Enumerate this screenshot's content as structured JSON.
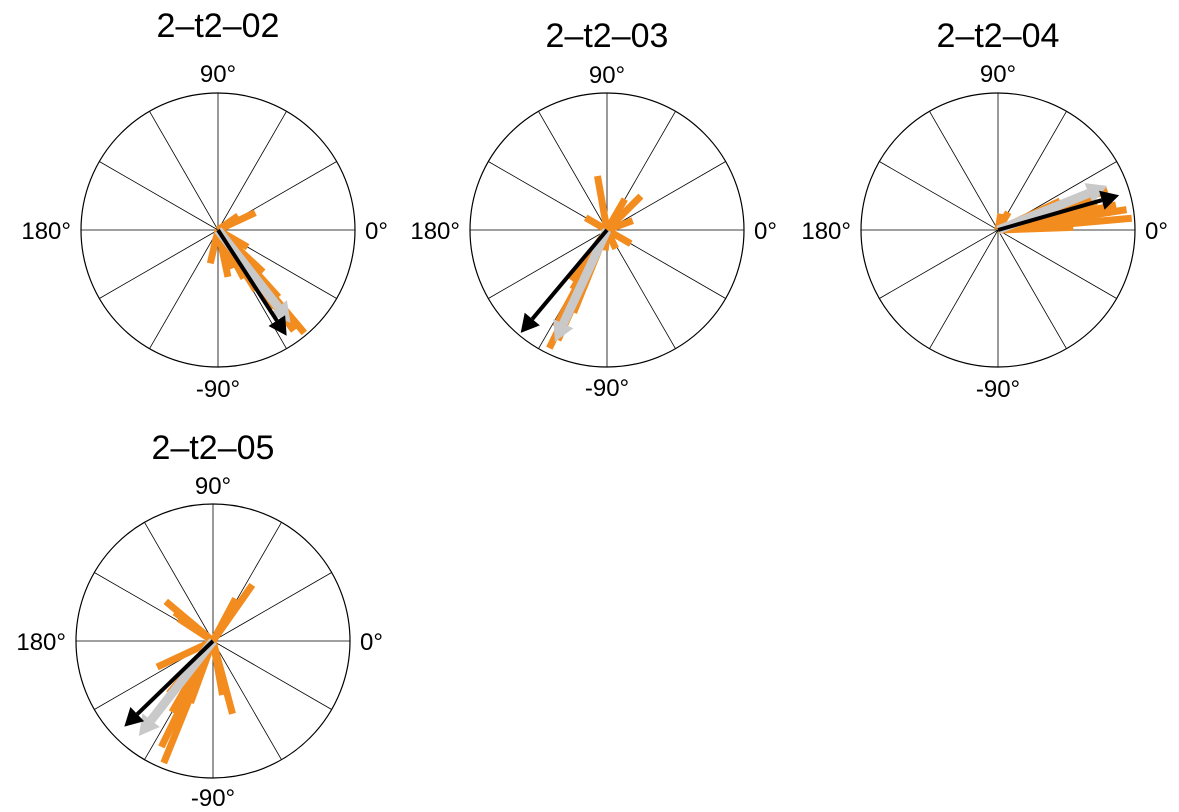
{
  "chart_data": [
    {
      "type": "polar",
      "title": "2–t2–02",
      "angle_labels": {
        "top": "90°",
        "left": "180°",
        "right": "0°",
        "bottom": "-90°"
      },
      "spoke_step_deg": 30,
      "bars": [
        {
          "angle": 25,
          "r": 0.3
        },
        {
          "angle": 35,
          "r": 0.18
        },
        {
          "angle": -43,
          "r": 0.45
        },
        {
          "angle": -48,
          "r": 0.66
        },
        {
          "angle": -50,
          "r": 0.98
        },
        {
          "angle": -53,
          "r": 0.92
        },
        {
          "angle": -55,
          "r": 0.7
        },
        {
          "angle": -58,
          "r": 0.52
        },
        {
          "angle": -62,
          "r": 0.4
        },
        {
          "angle": -70,
          "r": 0.3
        },
        {
          "angle": -78,
          "r": 0.35
        },
        {
          "angle": -103,
          "r": 0.25
        },
        {
          "angle": -30,
          "r": 0.25
        }
      ],
      "mean_gray": {
        "angle": -52,
        "r": 0.86
      },
      "mean_black": {
        "angle": -57,
        "r": 0.92
      }
    },
    {
      "type": "polar",
      "title": "2–t2–03",
      "angle_labels": {
        "top": "90°",
        "left": "180°",
        "right": "0°",
        "bottom": "-90°"
      },
      "spoke_step_deg": 30,
      "bars": [
        {
          "angle": 100,
          "r": 0.4
        },
        {
          "angle": 60,
          "r": 0.26
        },
        {
          "angle": 45,
          "r": 0.35
        },
        {
          "angle": 20,
          "r": 0.2
        },
        {
          "angle": 150,
          "r": 0.18
        },
        {
          "angle": -30,
          "r": 0.2
        },
        {
          "angle": -65,
          "r": 0.15
        },
        {
          "angle": -95,
          "r": 0.15
        },
        {
          "angle": -112,
          "r": 0.65
        },
        {
          "angle": -114,
          "r": 0.88
        },
        {
          "angle": -116,
          "r": 0.96
        },
        {
          "angle": -118,
          "r": 0.8
        },
        {
          "angle": -120,
          "r": 0.5
        },
        {
          "angle": -125,
          "r": 0.45
        }
      ],
      "mean_gray": {
        "angle": -115,
        "r": 0.9
      },
      "mean_black": {
        "angle": -130,
        "r": 0.98
      }
    },
    {
      "type": "polar",
      "title": "2–t2–04",
      "angle_labels": {
        "top": "90°",
        "left": "180°",
        "right": "0°",
        "bottom": "-90°"
      },
      "spoke_step_deg": 30,
      "bars": [
        {
          "angle": 2,
          "r": 0.55
        },
        {
          "angle": 5,
          "r": 0.98
        },
        {
          "angle": 9,
          "r": 0.95
        },
        {
          "angle": 12,
          "r": 0.88
        },
        {
          "angle": 16,
          "r": 0.75
        },
        {
          "angle": 20,
          "r": 0.85
        },
        {
          "angle": 25,
          "r": 0.5
        },
        {
          "angle": 60,
          "r": 0.15
        },
        {
          "angle": 80,
          "r": 0.12
        }
      ],
      "mean_gray": {
        "angle": 22,
        "r": 0.86
      },
      "mean_black": {
        "angle": 16,
        "r": 0.92
      }
    },
    {
      "type": "polar",
      "title": "2–t2–05",
      "angle_labels": {
        "top": "90°",
        "left": "180°",
        "right": "0°",
        "bottom": "-90°"
      },
      "spoke_step_deg": 30,
      "bars": [
        {
          "angle": 140,
          "r": 0.45
        },
        {
          "angle": 143,
          "r": 0.35
        },
        {
          "angle": 147,
          "r": 0.3
        },
        {
          "angle": 55,
          "r": 0.5
        },
        {
          "angle": 62,
          "r": 0.35
        },
        {
          "angle": -155,
          "r": 0.45
        },
        {
          "angle": -110,
          "r": 0.48
        },
        {
          "angle": -112,
          "r": 0.96
        },
        {
          "angle": -116,
          "r": 0.86
        },
        {
          "angle": -120,
          "r": 0.6
        },
        {
          "angle": -75,
          "r": 0.55
        },
        {
          "angle": -80,
          "r": 0.4
        },
        {
          "angle": -130,
          "r": 0.5
        }
      ],
      "mean_gray": {
        "angle": -128,
        "r": 0.88
      },
      "mean_black": {
        "angle": -136,
        "r": 0.9
      }
    }
  ],
  "colors": {
    "bars": "#f28c1e",
    "mean_gray": "#c9c9c9",
    "mean_black": "#000000",
    "grid": "#000000"
  }
}
